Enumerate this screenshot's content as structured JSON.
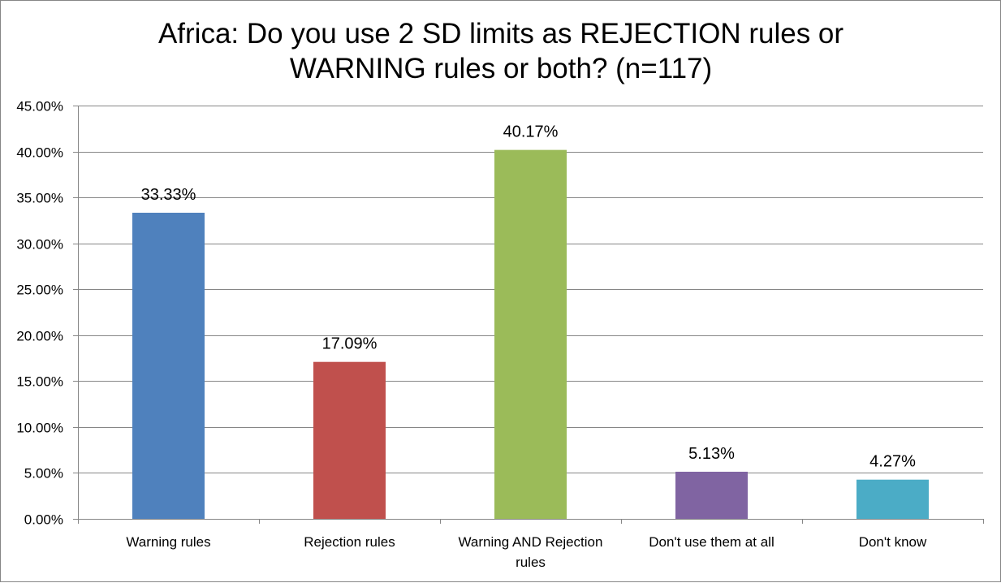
{
  "chart_data": {
    "type": "bar",
    "title_lines": [
      "Africa: Do you use 2 SD limits as REJECTION rules or",
      "WARNING rules or both? (n=117)"
    ],
    "categories": [
      [
        "Warning rules"
      ],
      [
        "Rejection rules"
      ],
      [
        "Warning AND Rejection",
        "rules"
      ],
      [
        "Don't use them at all"
      ],
      [
        "Don't know"
      ]
    ],
    "values": [
      33.33,
      17.09,
      40.17,
      5.13,
      4.27
    ],
    "data_labels": [
      "33.33%",
      "17.09%",
      "40.17%",
      "5.13%",
      "4.27%"
    ],
    "colors": [
      "#4f81bd",
      "#c0504d",
      "#9bbb59",
      "#8064a2",
      "#4bacc6"
    ],
    "ylim": [
      0,
      45
    ],
    "yticks": [
      0,
      5,
      10,
      15,
      20,
      25,
      30,
      35,
      40,
      45
    ],
    "ytick_labels": [
      "0.00%",
      "5.00%",
      "10.00%",
      "15.00%",
      "20.00%",
      "25.00%",
      "30.00%",
      "35.00%",
      "40.00%",
      "45.00%"
    ],
    "grid": true,
    "xlabel": "",
    "ylabel": ""
  }
}
